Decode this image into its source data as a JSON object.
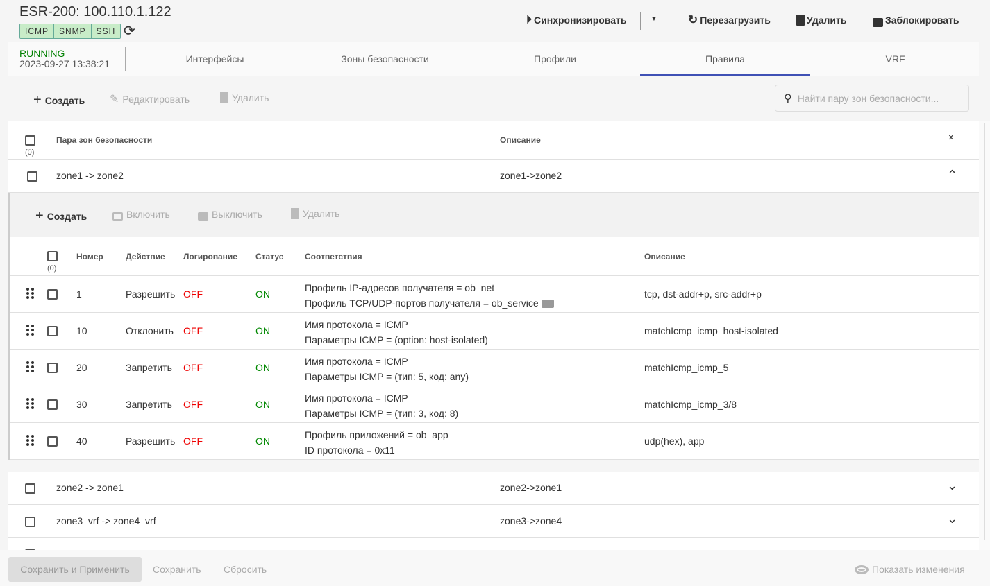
{
  "device": {
    "title": "ESR-200: 100.110.1.122",
    "badges": [
      "ICMP",
      "SNMP",
      "SSH"
    ],
    "state": "RUNNING",
    "timestamp": "2023-09-27 13:38:21",
    "state_color": "#008000"
  },
  "header_actions": {
    "sync": "Синхронизировать",
    "reboot": "Перезагрузить",
    "delete": "Удалить",
    "lock": "Заблокировать"
  },
  "tabs": [
    {
      "label": "Интерфейсы"
    },
    {
      "label": "Зоны безопасности"
    },
    {
      "label": "Профили"
    },
    {
      "label": "Правила",
      "active": true
    },
    {
      "label": "VRF"
    }
  ],
  "accent": "#3f51b5",
  "toolbar": {
    "create": "Создать",
    "edit": "Редактировать",
    "delete": "Удалить",
    "search_placeholder": "Найти пару зон безопасности..."
  },
  "table": {
    "columns": [
      "Пара зон безопасности",
      "Описание"
    ],
    "selected_count": "(0)",
    "pairs": [
      {
        "pair": "zone1 -> zone2",
        "description": "zone1->zone2",
        "expanded": true
      },
      {
        "pair": "zone2 -> zone1",
        "description": "zone2->zone1"
      },
      {
        "pair": "zone3_vrf -> zone4_vrf",
        "description": "zone3->zone4"
      }
    ]
  },
  "rules": {
    "toolbar": {
      "create": "Создать",
      "enable": "Включить",
      "disable": "Выключить",
      "delete": "Удалить"
    },
    "columns": [
      "Номер",
      "Действие",
      "Логирование",
      "Статус",
      "Соответствия",
      "Описание"
    ],
    "selected_count": "(0)",
    "rows": [
      {
        "num": "1",
        "action": "Разрешить",
        "log": "OFF",
        "status": "ON",
        "match": [
          "Профиль IP-адресов получателя = ob_net",
          "Профиль TCP/UDP-портов получателя = ob_service"
        ],
        "more": true,
        "desc": "tcp, dst-addr+p, src-addr+p"
      },
      {
        "num": "10",
        "action": "Отклонить",
        "log": "OFF",
        "status": "ON",
        "match": [
          "Имя протокола = ICMP",
          "Параметры ICMP = (option: host-isolated)"
        ],
        "desc": "matchIcmp_icmp_host-isolated"
      },
      {
        "num": "20",
        "action": "Запретить",
        "log": "OFF",
        "status": "ON",
        "match": [
          "Имя протокола = ICMP",
          "Параметры ICMP = (тип: 5, код: any)"
        ],
        "desc": "matchIcmp_icmp_5"
      },
      {
        "num": "30",
        "action": "Запретить",
        "log": "OFF",
        "status": "ON",
        "match": [
          "Имя протокола = ICMP",
          "Параметры ICMP = (тип: 3, код: 8)"
        ],
        "desc": "matchIcmp_icmp_3/8"
      },
      {
        "num": "40",
        "action": "Разрешить",
        "log": "OFF",
        "status": "ON",
        "match": [
          "Профиль приложений = ob_app",
          "ID протокола = 0x11"
        ],
        "desc": "udp(hex), app"
      }
    ]
  },
  "footer": {
    "save_apply": "Сохранить и Применить",
    "save": "Сохранить",
    "reset": "Сбросить",
    "show_changes": "Показать изменения"
  }
}
